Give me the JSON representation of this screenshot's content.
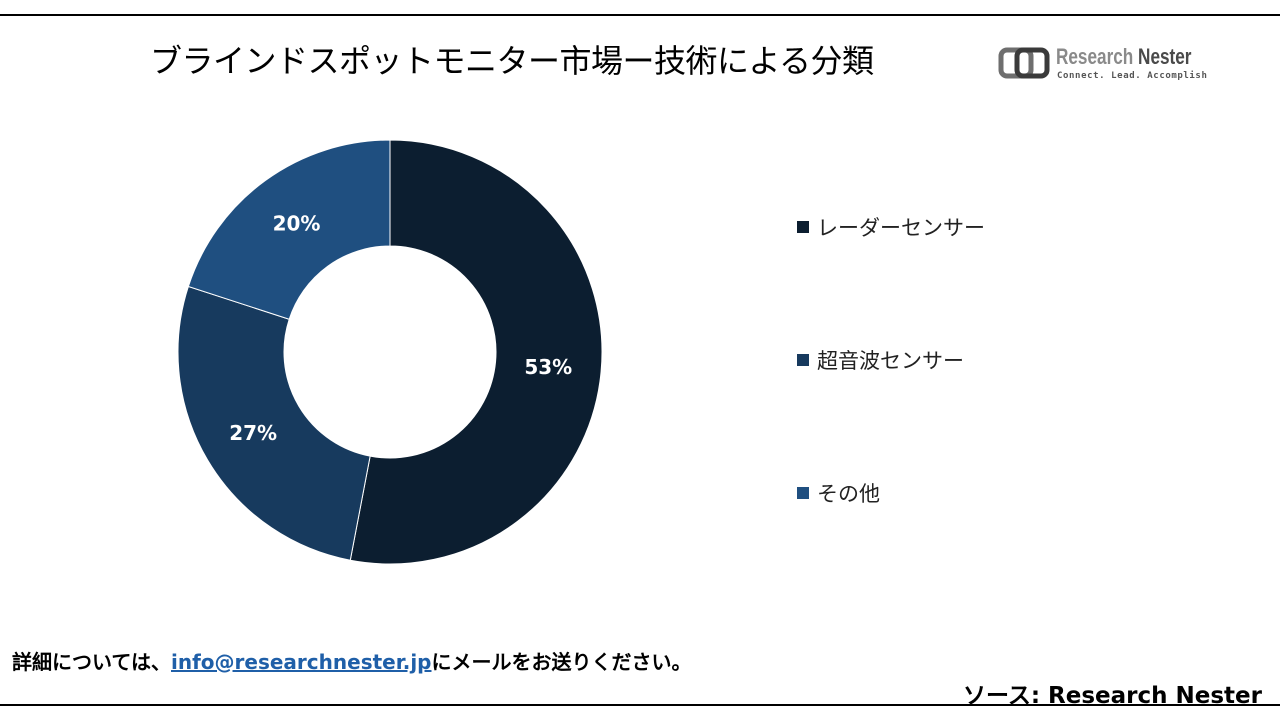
{
  "title": "ブラインドスポットモニター市場ー技術による分類",
  "logo": {
    "name_part1": "Research",
    "name_part2": "Nester",
    "tagline": "Connect. Lead. Accomplish",
    "icon": "research-nester-logo-icon"
  },
  "chart_data": {
    "type": "pie",
    "variant": "donut",
    "title": "ブラインドスポットモニター市場ー技術による分類",
    "legend_position": "right",
    "series": [
      {
        "name": "レーダーセンサー",
        "value": 53,
        "label": "53%",
        "color": "#0c1e30"
      },
      {
        "name": "超音波センサー",
        "value": 27,
        "label": "27%",
        "color": "#173a5e"
      },
      {
        "name": "その他",
        "value": 20,
        "label": "20%",
        "color": "#1f4f80"
      }
    ]
  },
  "footer": {
    "note_before": "詳細については、",
    "email": "info@researchnester.jp",
    "note_after": "にメールをお送りください。"
  },
  "source": "ソース: Research Nester"
}
